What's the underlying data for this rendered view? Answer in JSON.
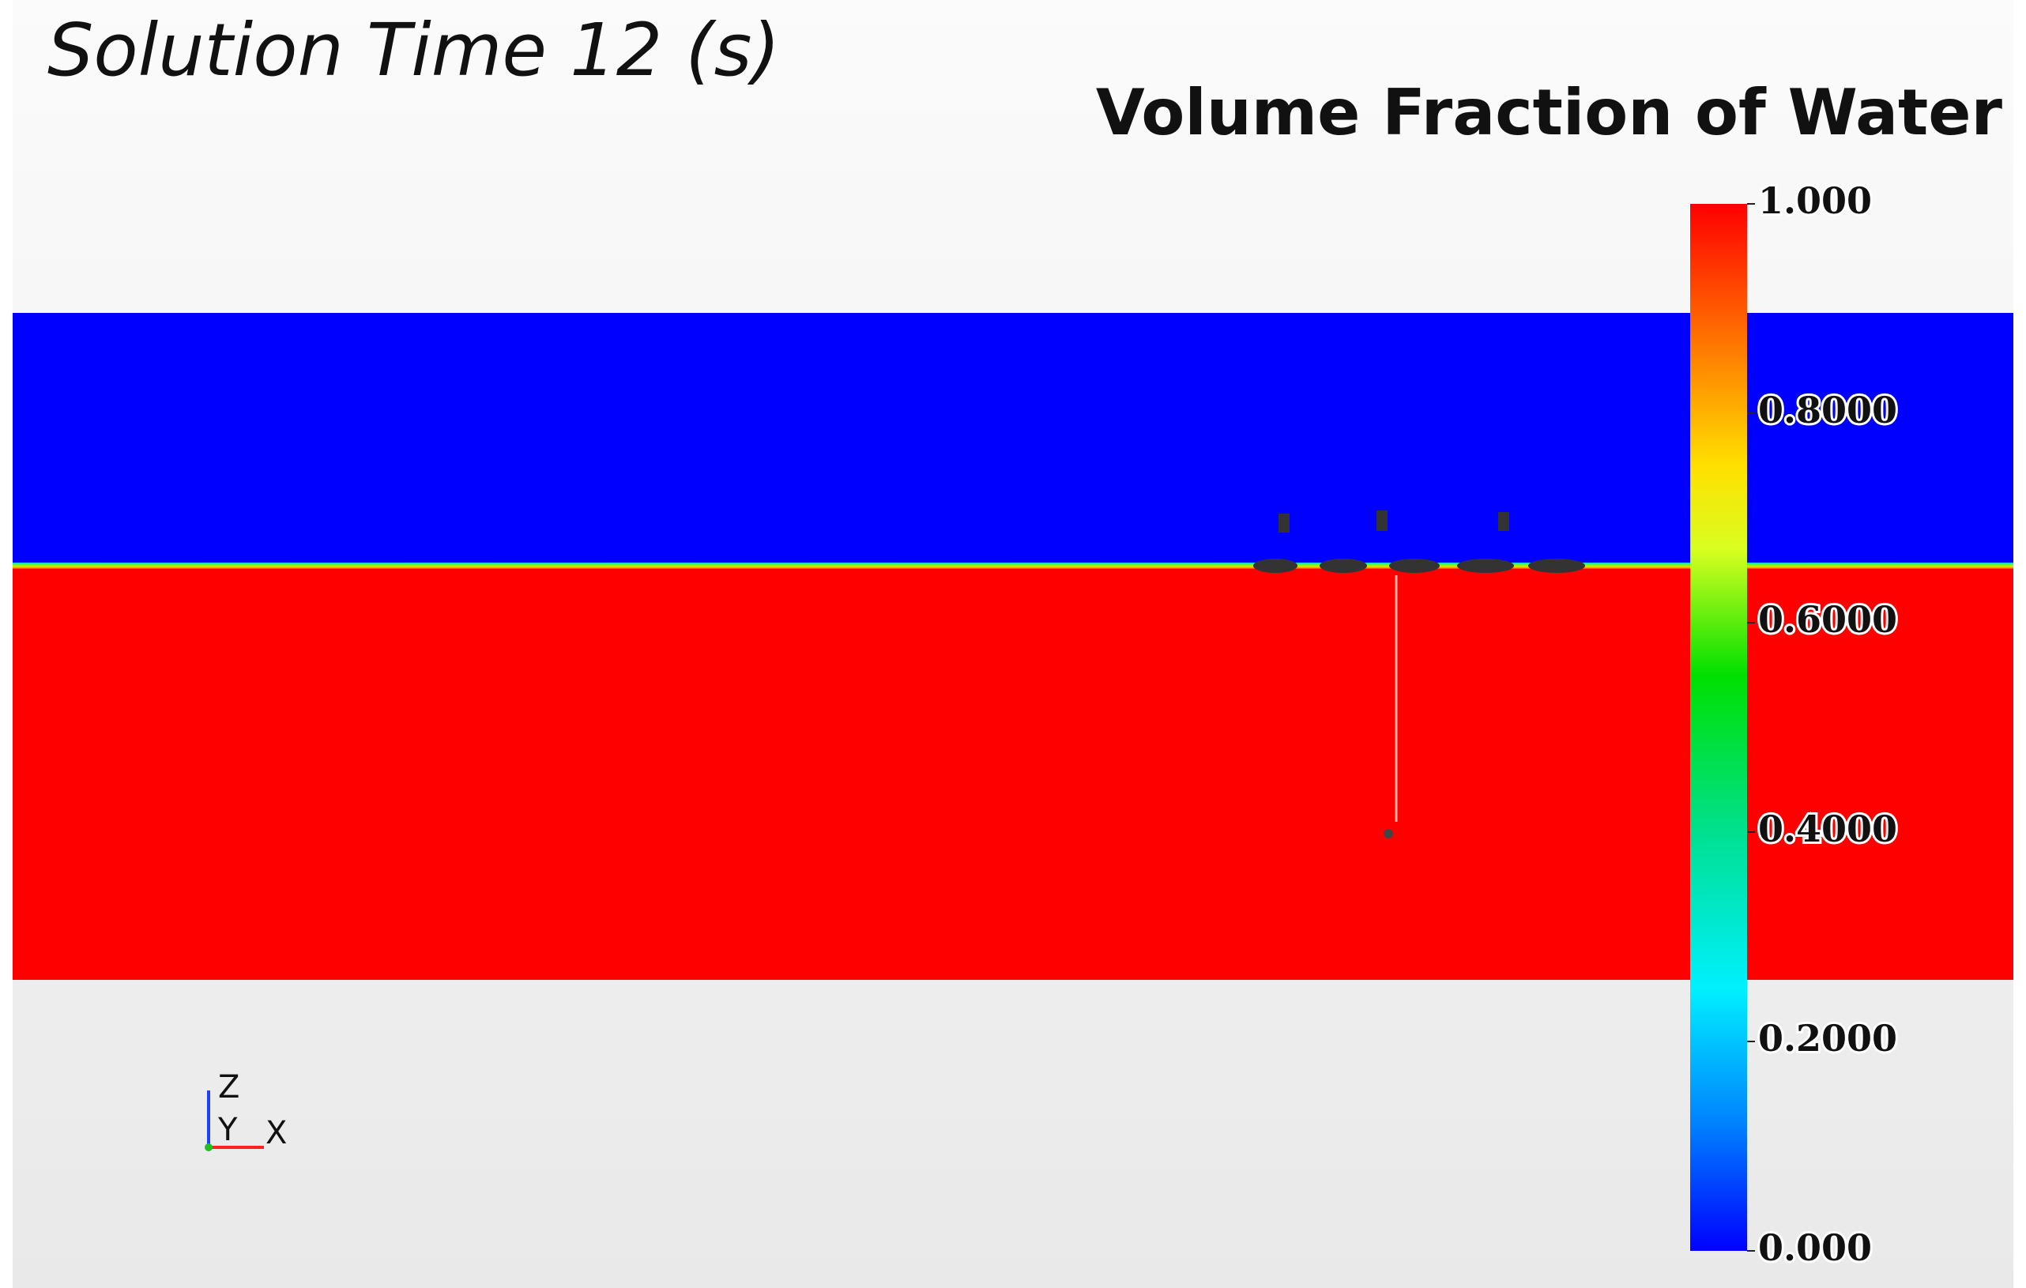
{
  "title": "Solution Time 12 (s)",
  "colorbar": {
    "title": "Volume Fraction of Water",
    "range": [
      0,
      1
    ],
    "ticks": [
      {
        "value": 1,
        "label": "1.000"
      },
      {
        "value": 0.8,
        "label": "0.8000"
      },
      {
        "value": 0.6,
        "label": "0.6000"
      },
      {
        "value": 0.4,
        "label": "0.4000"
      },
      {
        "value": 0.2,
        "label": "0.2000"
      },
      {
        "value": 0,
        "label": "0.000"
      }
    ]
  },
  "axes_triad": {
    "labels": [
      "Z",
      "Y",
      "X"
    ]
  }
}
